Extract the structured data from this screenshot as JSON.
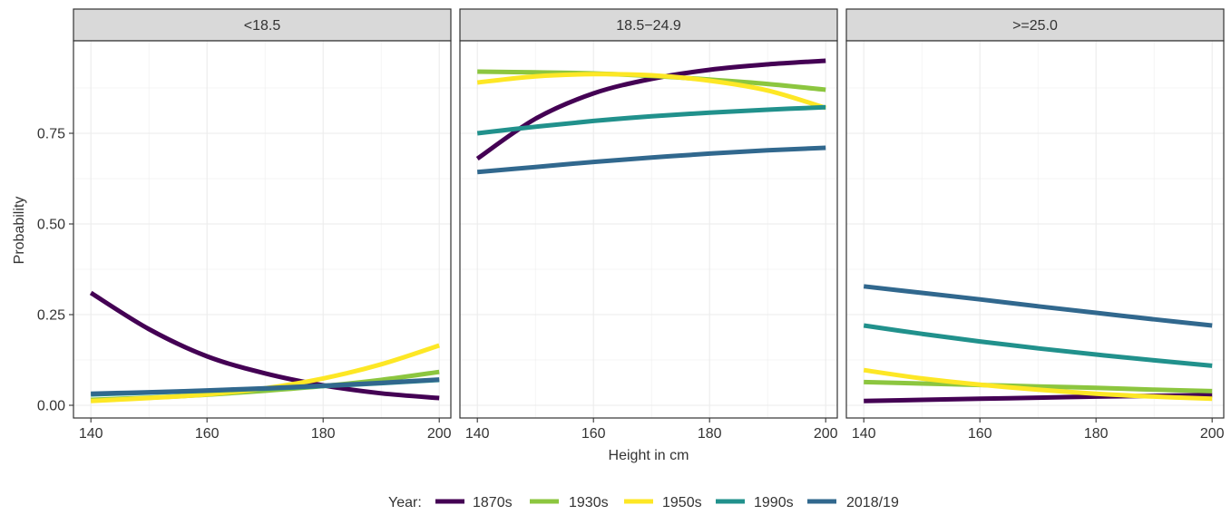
{
  "chart_data": {
    "type": "line",
    "xlabel": "Height in cm",
    "ylabel": "Probability",
    "xlim": [
      137,
      202
    ],
    "ylim": [
      -0.035,
      1.005
    ],
    "x_ticks": [
      140,
      160,
      180,
      200
    ],
    "x_tick_labels": [
      "140",
      "160",
      "180",
      "200"
    ],
    "y_ticks": [
      0.0,
      0.25,
      0.5,
      0.75
    ],
    "y_tick_labels": [
      "0.00",
      "0.25",
      "0.50",
      "0.75"
    ],
    "grid": true,
    "legend": {
      "title": "Year:",
      "placement": "bottom",
      "entries": [
        "1870s",
        "1930s",
        "1950s",
        "1990s",
        "2018/19"
      ]
    },
    "colors": {
      "1870s": "#440154",
      "1930s": "#8cc63f",
      "1950s": "#fde725",
      "1990s": "#21918c",
      "2018/19": "#31688e"
    },
    "x": [
      140,
      150,
      160,
      170,
      180,
      190,
      200
    ],
    "panels": [
      {
        "title": "<18.5",
        "series": [
          {
            "name": "1870s",
            "values": [
              0.31,
              0.21,
              0.135,
              0.088,
              0.055,
              0.033,
              0.02
            ]
          },
          {
            "name": "1930s",
            "values": [
              0.015,
              0.021,
              0.029,
              0.04,
              0.053,
              0.07,
              0.092
            ]
          },
          {
            "name": "1950s",
            "values": [
              0.012,
              0.02,
              0.03,
              0.047,
              0.074,
              0.113,
              0.165
            ]
          },
          {
            "name": "1990s",
            "values": [
              0.03,
              0.035,
              0.04,
              0.046,
              0.053,
              0.061,
              0.07
            ]
          },
          {
            "name": "2018/19",
            "values": [
              0.032,
              0.036,
              0.041,
              0.047,
              0.054,
              0.062,
              0.071
            ]
          }
        ]
      },
      {
        "title": "18.5−24.9",
        "series": [
          {
            "name": "1870s",
            "values": [
              0.68,
              0.79,
              0.86,
              0.9,
              0.925,
              0.94,
              0.95
            ]
          },
          {
            "name": "1930s",
            "values": [
              0.92,
              0.918,
              0.915,
              0.908,
              0.898,
              0.886,
              0.87
            ]
          },
          {
            "name": "1950s",
            "values": [
              0.89,
              0.907,
              0.913,
              0.91,
              0.895,
              0.868,
              0.82
            ]
          },
          {
            "name": "1990s",
            "values": [
              0.75,
              0.768,
              0.784,
              0.797,
              0.807,
              0.815,
              0.822
            ]
          },
          {
            "name": "2018/19",
            "values": [
              0.643,
              0.657,
              0.671,
              0.683,
              0.694,
              0.703,
              0.71
            ]
          }
        ]
      },
      {
        "title": ">=25.0",
        "series": [
          {
            "name": "1870s",
            "values": [
              0.012,
              0.015,
              0.018,
              0.021,
              0.024,
              0.026,
              0.028
            ]
          },
          {
            "name": "1930s",
            "values": [
              0.064,
              0.06,
              0.056,
              0.052,
              0.048,
              0.043,
              0.039
            ]
          },
          {
            "name": "1950s",
            "values": [
              0.097,
              0.074,
              0.057,
              0.043,
              0.032,
              0.024,
              0.018
            ]
          },
          {
            "name": "1990s",
            "values": [
              0.22,
              0.197,
              0.176,
              0.157,
              0.14,
              0.124,
              0.109
            ]
          },
          {
            "name": "2018/19",
            "values": [
              0.328,
              0.31,
              0.292,
              0.273,
              0.255,
              0.237,
              0.22
            ]
          }
        ]
      }
    ]
  }
}
